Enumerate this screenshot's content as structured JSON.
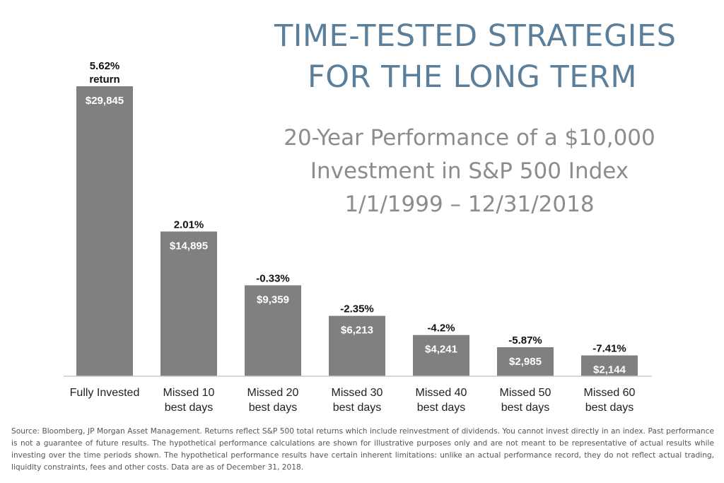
{
  "header": {
    "title_lines": [
      "TIME-TESTED STRATEGIES",
      "FOR THE LONG TERM"
    ],
    "subtitle_lines": [
      "20-Year Performance of a $10,000",
      "Investment in S&P 500 Index",
      "1/1/1999 – 12/31/2018"
    ]
  },
  "colors": {
    "bar": "#808080",
    "title": "#5b7f9a",
    "subtitle": "#8c8c8c"
  },
  "chart_data": {
    "type": "bar",
    "categories": [
      [
        "Fully Invested"
      ],
      [
        "Missed 10",
        "best days"
      ],
      [
        "Missed 20",
        "best days"
      ],
      [
        "Missed 30",
        "best days"
      ],
      [
        "Missed 40",
        "best days"
      ],
      [
        "Missed 50",
        "best days"
      ],
      [
        "Missed 60",
        "best days"
      ]
    ],
    "values": [
      29845,
      14895,
      9359,
      6213,
      4241,
      2985,
      2144
    ],
    "value_labels": [
      "$29,845",
      "$14,895",
      "$9,359",
      "$6,213",
      "$4,241",
      "$2,985",
      "$2,144"
    ],
    "return_labels": [
      [
        "5.62%",
        "return"
      ],
      [
        "2.01%"
      ],
      [
        "-0.33%"
      ],
      [
        "-2.35%"
      ],
      [
        "-4.2%"
      ],
      [
        "-5.87%"
      ],
      [
        "-7.41%"
      ]
    ],
    "ylim": [
      0,
      29845
    ],
    "grid": false,
    "legend": "none"
  },
  "footnote": "Source:  Bloomberg, JP Morgan Asset Management. Returns reflect S&P 500 total returns which include reinvestment of dividends. You cannot invest directly in an index. Past performance is not a guarantee of future results. The hypothetical performance calculations are shown for illustrative purposes only and are not meant to be representative of actual results while investing over the time periods shown. The hypothetical performance results have certain inherent limitations: unlike an actual performance record, they do not reflect actual trading, liquidity constraints, fees and other costs. Data are as of December 31, 2018."
}
